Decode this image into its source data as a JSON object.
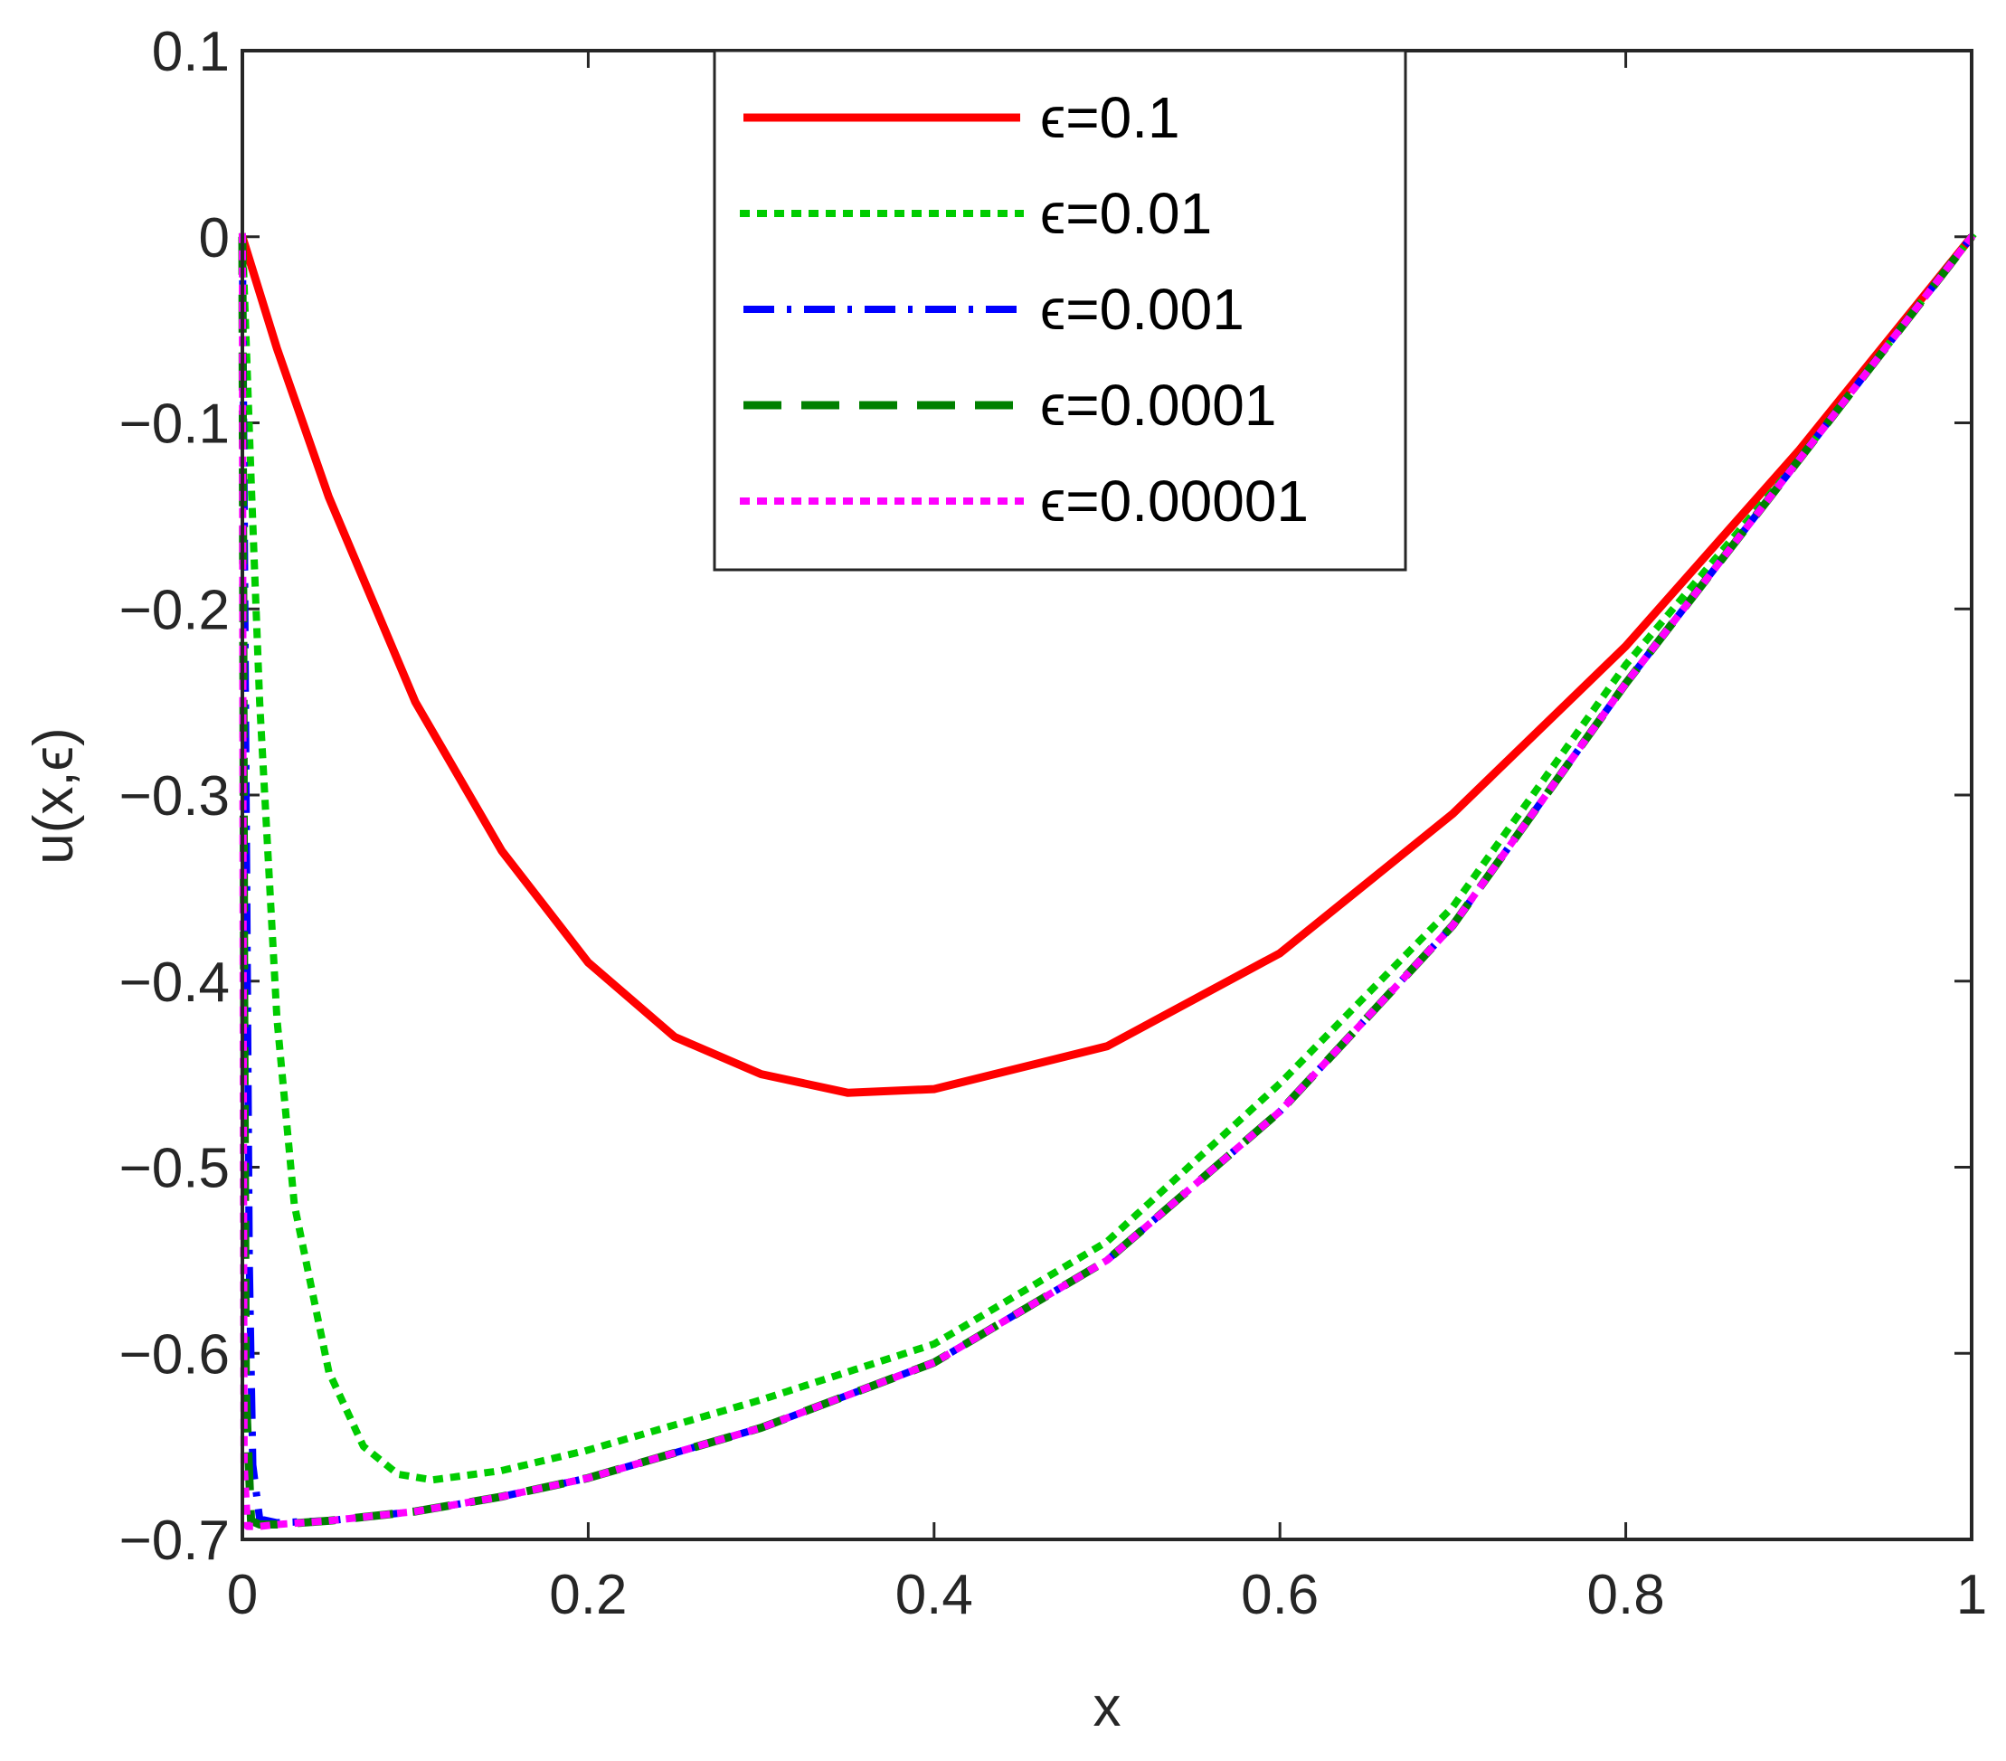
{
  "chart_data": {
    "type": "line",
    "title": "",
    "xlabel": "x",
    "ylabel": "u(x,ϵ)",
    "xlim": [
      0,
      1
    ],
    "ylim": [
      -0.7,
      0.1
    ],
    "xticks": [
      {
        "value": 0,
        "label": "0"
      },
      {
        "value": 0.2,
        "label": "0.2"
      },
      {
        "value": 0.4,
        "label": "0.4"
      },
      {
        "value": 0.6,
        "label": "0.6"
      },
      {
        "value": 0.8,
        "label": "0.8"
      },
      {
        "value": 1,
        "label": "1"
      }
    ],
    "yticks": [
      {
        "value": 0.1,
        "label": "0.1"
      },
      {
        "value": 0,
        "label": "0"
      },
      {
        "value": -0.1,
        "label": "−0.1"
      },
      {
        "value": -0.2,
        "label": "−0.2"
      },
      {
        "value": -0.3,
        "label": "−0.3"
      },
      {
        "value": -0.4,
        "label": "−0.4"
      },
      {
        "value": -0.5,
        "label": "−0.5"
      },
      {
        "value": -0.6,
        "label": "−0.6"
      },
      {
        "value": -0.7,
        "label": "−0.7"
      }
    ],
    "grid": false,
    "legend_position": "top-center",
    "series": [
      {
        "name": "ϵ=0.1",
        "color": "#ff0000",
        "style": "solid",
        "x": [
          0,
          0.02,
          0.05,
          0.1,
          0.15,
          0.2,
          0.25,
          0.3,
          0.35,
          0.4,
          0.5,
          0.6,
          0.7,
          0.8,
          0.9,
          1.0
        ],
        "y": [
          0,
          -0.06,
          -0.14,
          -0.25,
          -0.33,
          -0.39,
          -0.43,
          -0.45,
          -0.46,
          -0.458,
          -0.435,
          -0.385,
          -0.31,
          -0.22,
          -0.115,
          0
        ]
      },
      {
        "name": "ϵ=0.01",
        "color": "#00cc00",
        "style": "dotted",
        "x": [
          0,
          0.005,
          0.01,
          0.02,
          0.03,
          0.05,
          0.07,
          0.09,
          0.11,
          0.15,
          0.2,
          0.3,
          0.4,
          0.5,
          0.6,
          0.7,
          0.8,
          0.9,
          1.0
        ],
        "y": [
          0,
          -0.13,
          -0.25,
          -0.42,
          -0.52,
          -0.61,
          -0.65,
          -0.665,
          -0.668,
          -0.663,
          -0.652,
          -0.625,
          -0.595,
          -0.54,
          -0.455,
          -0.36,
          -0.23,
          -0.12,
          0
        ]
      },
      {
        "name": "ϵ=0.001",
        "color": "#0000ff",
        "style": "dashdot",
        "x": [
          0,
          0.002,
          0.004,
          0.006,
          0.01,
          0.02,
          0.05,
          0.1,
          0.15,
          0.2,
          0.3,
          0.4,
          0.5,
          0.6,
          0.7,
          0.8,
          0.9,
          1.0
        ],
        "y": [
          0,
          -0.28,
          -0.55,
          -0.66,
          -0.689,
          -0.691,
          -0.69,
          -0.685,
          -0.677,
          -0.667,
          -0.64,
          -0.605,
          -0.55,
          -0.47,
          -0.37,
          -0.24,
          -0.12,
          0
        ]
      },
      {
        "name": "ϵ=0.0001",
        "color": "#008000",
        "style": "dashed",
        "x": [
          0,
          0.001,
          0.002,
          0.005,
          0.01,
          0.02,
          0.05,
          0.1,
          0.15,
          0.2,
          0.3,
          0.4,
          0.5,
          0.6,
          0.7,
          0.8,
          0.9,
          1.0
        ],
        "y": [
          0,
          -0.4,
          -0.62,
          -0.69,
          -0.692,
          -0.692,
          -0.69,
          -0.685,
          -0.677,
          -0.667,
          -0.64,
          -0.605,
          -0.55,
          -0.47,
          -0.37,
          -0.24,
          -0.12,
          0
        ]
      },
      {
        "name": "ϵ=0.00001",
        "color": "#ff00ff",
        "style": "dotted",
        "x": [
          0,
          0.0005,
          0.001,
          0.003,
          0.01,
          0.02,
          0.05,
          0.1,
          0.15,
          0.2,
          0.3,
          0.4,
          0.5,
          0.6,
          0.7,
          0.8,
          0.9,
          1.0
        ],
        "y": [
          0,
          -0.45,
          -0.66,
          -0.693,
          -0.693,
          -0.692,
          -0.69,
          -0.685,
          -0.677,
          -0.667,
          -0.64,
          -0.605,
          -0.55,
          -0.47,
          -0.37,
          -0.24,
          -0.12,
          0
        ]
      }
    ]
  }
}
